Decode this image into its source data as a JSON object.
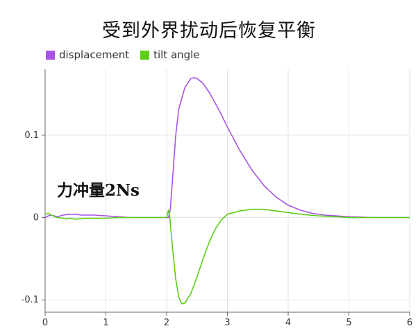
{
  "chart_data": {
    "type": "line",
    "title": "受到外界扰动后恢复平衡",
    "annotation": "力冲量2Ns",
    "xlim": [
      0,
      6
    ],
    "ylim": [
      -0.115,
      0.18
    ],
    "x_ticks": [
      0,
      1,
      2,
      3,
      4,
      5,
      6
    ],
    "y_ticks": [
      0.1,
      0,
      -0.1
    ],
    "y_tick_labels": [
      "0.1",
      "0",
      "-0.1"
    ],
    "grid": true,
    "legend_position": "top-left",
    "series": [
      {
        "name": "displacement",
        "color": "#a952e8",
        "points": [
          [
            0,
            0
          ],
          [
            0.05,
            0.002
          ],
          [
            0.1,
            0.003
          ],
          [
            0.2,
            0.001
          ],
          [
            0.3,
            0.003
          ],
          [
            0.4,
            0.004
          ],
          [
            0.5,
            0.004
          ],
          [
            0.6,
            0.003
          ],
          [
            0.8,
            0.003
          ],
          [
            1.0,
            0.002
          ],
          [
            1.2,
            0.001
          ],
          [
            1.4,
            0.0
          ],
          [
            1.6,
            0.0
          ],
          [
            1.8,
            0.0
          ],
          [
            2.0,
            0.0
          ],
          [
            2.03,
            0.0
          ],
          [
            2.06,
            0.01
          ],
          [
            2.1,
            0.05
          ],
          [
            2.15,
            0.1
          ],
          [
            2.2,
            0.132
          ],
          [
            2.3,
            0.158
          ],
          [
            2.4,
            0.169
          ],
          [
            2.45,
            0.17
          ],
          [
            2.5,
            0.169
          ],
          [
            2.6,
            0.163
          ],
          [
            2.7,
            0.152
          ],
          [
            2.8,
            0.139
          ],
          [
            2.9,
            0.125
          ],
          [
            3.0,
            0.11
          ],
          [
            3.2,
            0.082
          ],
          [
            3.4,
            0.058
          ],
          [
            3.6,
            0.039
          ],
          [
            3.8,
            0.025
          ],
          [
            4.0,
            0.015
          ],
          [
            4.2,
            0.009
          ],
          [
            4.4,
            0.005
          ],
          [
            4.6,
            0.003
          ],
          [
            4.8,
            0.002
          ],
          [
            5.0,
            0.001
          ],
          [
            5.4,
            0.0
          ],
          [
            6.0,
            0.0
          ]
        ]
      },
      {
        "name": "tilt angle",
        "color": "#5cce16",
        "points": [
          [
            0,
            0.004
          ],
          [
            0.05,
            0.005
          ],
          [
            0.1,
            0.003
          ],
          [
            0.2,
            0.0
          ],
          [
            0.3,
            -0.001
          ],
          [
            0.35,
            -0.002
          ],
          [
            0.4,
            -0.001
          ],
          [
            0.5,
            -0.002
          ],
          [
            0.7,
            -0.001
          ],
          [
            1.0,
            -0.001
          ],
          [
            1.2,
            0.0
          ],
          [
            1.5,
            0.0
          ],
          [
            1.8,
            0.0
          ],
          [
            2.0,
            0.0
          ],
          [
            2.03,
            0.009
          ],
          [
            2.05,
            0.002
          ],
          [
            2.1,
            -0.04
          ],
          [
            2.15,
            -0.075
          ],
          [
            2.2,
            -0.097
          ],
          [
            2.25,
            -0.105
          ],
          [
            2.3,
            -0.104
          ],
          [
            2.4,
            -0.092
          ],
          [
            2.5,
            -0.072
          ],
          [
            2.6,
            -0.05
          ],
          [
            2.7,
            -0.03
          ],
          [
            2.8,
            -0.014
          ],
          [
            2.9,
            -0.003
          ],
          [
            3.0,
            0.004
          ],
          [
            3.2,
            0.008
          ],
          [
            3.4,
            0.01
          ],
          [
            3.6,
            0.01
          ],
          [
            3.8,
            0.008
          ],
          [
            4.0,
            0.006
          ],
          [
            4.2,
            0.004
          ],
          [
            4.5,
            0.002
          ],
          [
            4.8,
            0.001
          ],
          [
            5.0,
            0.0
          ],
          [
            6.0,
            0.0
          ]
        ]
      }
    ]
  }
}
